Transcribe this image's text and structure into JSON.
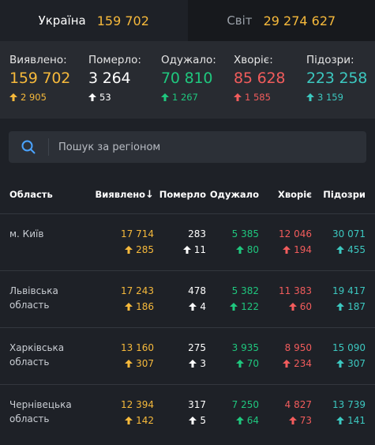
{
  "tabs": [
    {
      "label": "Україна",
      "value": "159 702"
    },
    {
      "label": "Світ",
      "value": "29 274 627"
    }
  ],
  "stats": [
    {
      "label": "Виявлено:",
      "value": "159 702",
      "delta": "2 905",
      "color": "#f6b93b"
    },
    {
      "label": "Померло:",
      "value": "3 264",
      "delta": "53",
      "color": "#ffffff"
    },
    {
      "label": "Одужало:",
      "value": "70 810",
      "delta": "1 267",
      "color": "#1fc77e"
    },
    {
      "label": "Хворіє:",
      "value": "85 628",
      "delta": "1 585",
      "color": "#f25c5c"
    },
    {
      "label": "Підозри:",
      "value": "223 258",
      "delta": "3 159",
      "color": "#3cc8c0"
    }
  ],
  "search": {
    "placeholder": "Пошук за регіоном"
  },
  "table": {
    "headers": [
      "Область",
      "Виявлено",
      "Померло",
      "Одужало",
      "Хворіє",
      "Підозри"
    ],
    "sort_indicator": "↓",
    "rows": [
      {
        "region": [
          "м. Київ",
          ""
        ],
        "detected": "17 714",
        "detected_d": "285",
        "died": "283",
        "died_d": "11",
        "recovered": "5 385",
        "recovered_d": "80",
        "sick": "12 046",
        "sick_d": "194",
        "susp": "30 071",
        "susp_d": "455"
      },
      {
        "region": [
          "Львівська",
          "область"
        ],
        "detected": "17 243",
        "detected_d": "186",
        "died": "478",
        "died_d": "4",
        "recovered": "5 382",
        "recovered_d": "122",
        "sick": "11 383",
        "sick_d": "60",
        "susp": "19 417",
        "susp_d": "187"
      },
      {
        "region": [
          "Харківська",
          "область"
        ],
        "detected": "13 160",
        "detected_d": "307",
        "died": "275",
        "died_d": "3",
        "recovered": "3 935",
        "recovered_d": "70",
        "sick": "8 950",
        "sick_d": "234",
        "susp": "15 090",
        "susp_d": "307"
      },
      {
        "region": [
          "Чернівецька",
          "область"
        ],
        "detected": "12 394",
        "detected_d": "142",
        "died": "317",
        "died_d": "5",
        "recovered": "7 250",
        "recovered_d": "64",
        "sick": "4 827",
        "sick_d": "73",
        "susp": "13 739",
        "susp_d": "141"
      }
    ]
  },
  "colors": {
    "yellow": "#f6b93b",
    "white": "#ffffff",
    "green": "#1fc77e",
    "red": "#f25c5c",
    "teal": "#3cc8c0",
    "accent_search": "#4aa3ff"
  },
  "icons": {
    "search": "search-icon",
    "arrow": "arrow-up-icon"
  }
}
